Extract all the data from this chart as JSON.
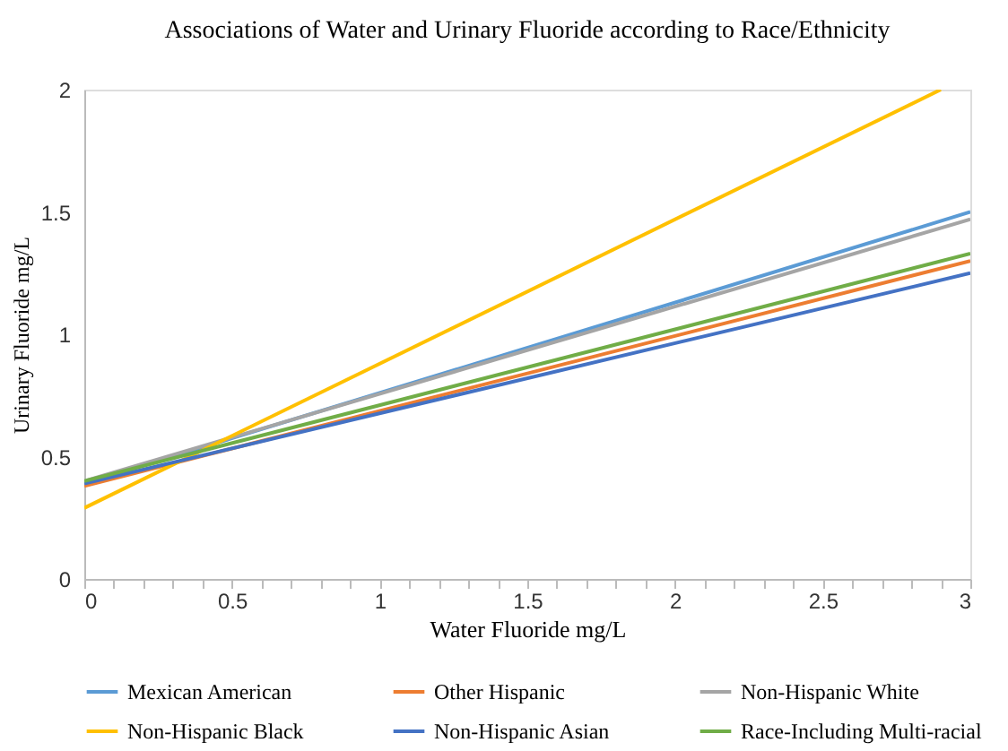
{
  "chart_data": {
    "type": "line",
    "title": "Associations of Water and Urinary Fluoride according to Race/Ethnicity",
    "xlabel": "Water Fluoride mg/L",
    "ylabel": "Urinary Fluoride mg/L",
    "x": [
      0,
      3
    ],
    "series": [
      {
        "name": "Mexican American",
        "color": "#5b9bd5",
        "values": [
          0.39,
          1.5
        ]
      },
      {
        "name": "Other Hispanic",
        "color": "#ed7d31",
        "values": [
          0.38,
          1.3
        ]
      },
      {
        "name": "Non-Hispanic White",
        "color": "#a5a5a5",
        "values": [
          0.4,
          1.47
        ]
      },
      {
        "name": "Non-Hispanic Black",
        "color": "#ffc000",
        "x": [
          0,
          2.9
        ],
        "values": [
          0.29,
          2.0
        ]
      },
      {
        "name": "Non-Hispanic Asian",
        "color": "#4472c4",
        "values": [
          0.39,
          1.25
        ]
      },
      {
        "name": "Race-Including Multi-racial",
        "color": "#70ad47",
        "values": [
          0.4,
          1.33
        ]
      }
    ],
    "xlim": [
      0,
      3
    ],
    "ylim": [
      0,
      2
    ],
    "xticks": [
      0,
      {
        "value": 0.1,
        "label": null
      },
      {
        "value": 0.2,
        "label": null
      },
      {
        "value": 0.3,
        "label": null
      },
      {
        "value": 0.4,
        "label": null
      },
      0.5,
      {
        "value": 0.6,
        "label": null
      },
      {
        "value": 0.7,
        "label": null
      },
      {
        "value": 0.8,
        "label": null
      },
      {
        "value": 0.9,
        "label": null
      },
      1,
      {
        "value": 1.1,
        "label": null
      },
      {
        "value": 1.2,
        "label": null
      },
      {
        "value": 1.3,
        "label": null
      },
      {
        "value": 1.4,
        "label": null
      },
      1.5,
      {
        "value": 1.6,
        "label": null
      },
      {
        "value": 1.7,
        "label": null
      },
      {
        "value": 1.8,
        "label": null
      },
      {
        "value": 1.9,
        "label": null
      },
      2,
      {
        "value": 2.1,
        "label": null
      },
      {
        "value": 2.2,
        "label": null
      },
      {
        "value": 2.3,
        "label": null
      },
      {
        "value": 2.4,
        "label": null
      },
      2.5,
      {
        "value": 2.6,
        "label": null
      },
      {
        "value": 2.7,
        "label": null
      },
      {
        "value": 2.8,
        "label": null
      },
      {
        "value": 2.9,
        "label": null
      },
      3
    ],
    "yticks": [
      0,
      0.5,
      1,
      1.5,
      2
    ],
    "grid": false,
    "legend": "bottom",
    "marker": "none",
    "line_style": "solid"
  }
}
